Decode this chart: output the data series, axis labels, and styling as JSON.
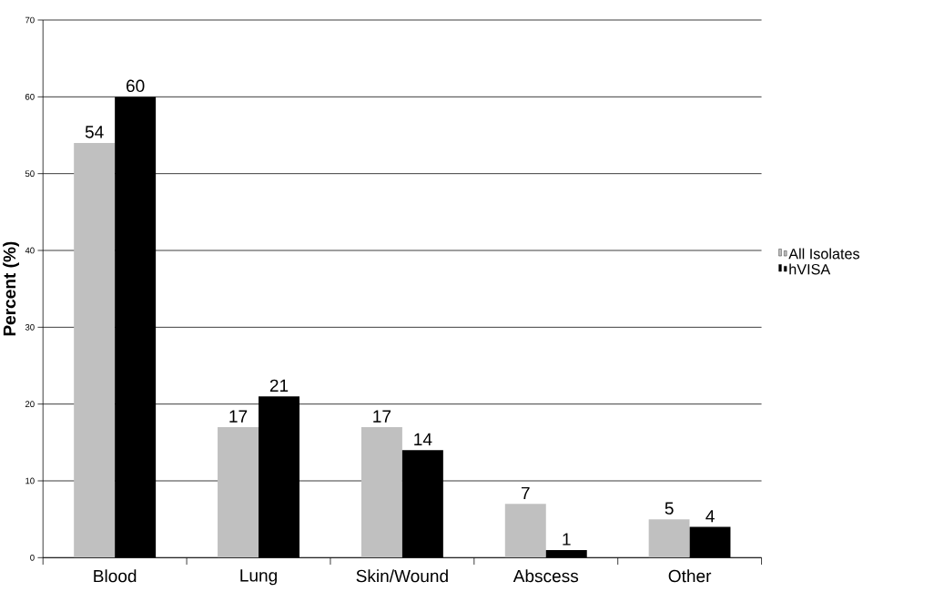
{
  "chart_data": {
    "type": "bar",
    "ylabel": "Percent (%)",
    "categories": [
      "Blood",
      "Lung",
      "Skin/Wound",
      "Abscess",
      "Other"
    ],
    "series": [
      {
        "name": "All Isolates",
        "color": "#c0c0c0",
        "values": [
          54,
          17,
          17,
          7,
          5
        ]
      },
      {
        "name": "hVISA",
        "color": "#000000",
        "values": [
          60,
          21,
          14,
          1,
          4
        ]
      }
    ],
    "ylim": [
      0,
      70
    ],
    "yticks": [
      0,
      10,
      20,
      30,
      40,
      50,
      60,
      70
    ],
    "grid": "y",
    "legend": "right",
    "data_labels": true
  }
}
